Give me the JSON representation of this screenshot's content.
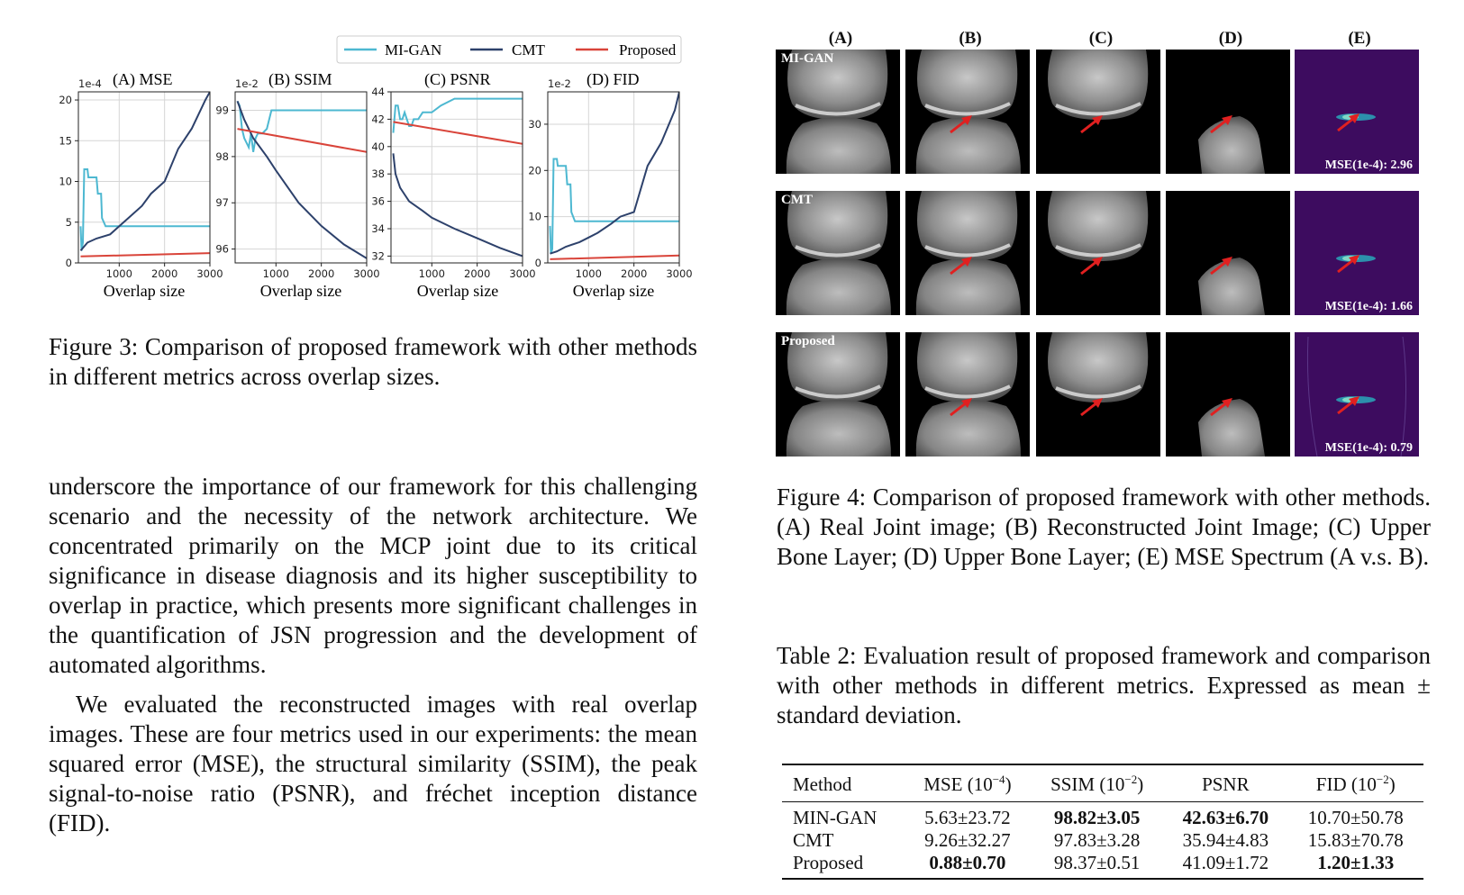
{
  "figure3": {
    "legend": [
      {
        "label": "MI-GAN",
        "color": "#4db8d1"
      },
      {
        "label": "CMT",
        "color": "#2d416b"
      },
      {
        "label": "Proposed",
        "color": "#d9443a"
      }
    ],
    "caption": "Figure 3: Comparison of proposed framework with other methods in different metrics across overlap sizes."
  },
  "chart_data": [
    {
      "type": "line",
      "title": "(A) MSE",
      "xlabel": "Overlap size",
      "ylabel": "",
      "scale_label": "1e-4",
      "xlim": [
        100,
        3000
      ],
      "ylim": [
        0,
        21
      ],
      "xticks": [
        1000,
        2000,
        3000
      ],
      "yticks": [
        0,
        5,
        10,
        15,
        20
      ],
      "series": [
        {
          "name": "MI-GAN",
          "x": [
            150,
            170,
            200,
            230,
            250,
            300,
            320,
            350,
            500,
            530,
            600,
            620,
            700,
            800,
            1000,
            1500,
            2000,
            2500,
            3000
          ],
          "y": [
            4.5,
            1.5,
            2.5,
            11.5,
            11.5,
            11.5,
            10.5,
            10.5,
            10.5,
            8.5,
            8.5,
            5.5,
            4.5,
            4.5,
            4.5,
            4.5,
            4.5,
            4.5,
            4.5
          ]
        },
        {
          "name": "CMT",
          "x": [
            150,
            300,
            500,
            800,
            1000,
            1200,
            1500,
            1700,
            2000,
            2300,
            2600,
            2900,
            3000
          ],
          "y": [
            1.5,
            2.5,
            3.0,
            3.5,
            4.5,
            5.5,
            7.0,
            8.5,
            10.0,
            14.0,
            16.5,
            20.0,
            21.0
          ]
        },
        {
          "name": "Proposed",
          "x": [
            150,
            3000
          ],
          "y": [
            0.8,
            1.2
          ]
        }
      ]
    },
    {
      "type": "line",
      "title": "(B) SSIM",
      "xlabel": "Overlap size",
      "ylabel": "",
      "scale_label": "1e-2",
      "xlim": [
        100,
        3000
      ],
      "ylim": [
        95.7,
        99.4
      ],
      "xticks": [
        1000,
        2000,
        3000
      ],
      "yticks": [
        96,
        97,
        98,
        99
      ],
      "series": [
        {
          "name": "MI-GAN",
          "x": [
            150,
            200,
            250,
            300,
            400,
            450,
            500,
            550,
            600,
            700,
            800,
            900,
            1000,
            1500,
            2000,
            2500,
            3000
          ],
          "y": [
            99.2,
            99.1,
            98.6,
            98.4,
            98.2,
            98.5,
            98.1,
            98.4,
            98.5,
            98.5,
            98.6,
            99.0,
            99.0,
            99.0,
            99.0,
            99.0,
            99.0
          ]
        },
        {
          "name": "CMT",
          "x": [
            150,
            300,
            500,
            800,
            1000,
            1500,
            2000,
            2500,
            3000
          ],
          "y": [
            99.2,
            98.8,
            98.4,
            98.0,
            97.7,
            97.0,
            96.5,
            96.1,
            95.8
          ]
        },
        {
          "name": "Proposed",
          "x": [
            150,
            3000
          ],
          "y": [
            98.6,
            98.1
          ]
        }
      ]
    },
    {
      "type": "line",
      "title": "(C) PSNR",
      "xlabel": "Overlap size",
      "ylabel": "",
      "scale_label": "",
      "xlim": [
        100,
        3000
      ],
      "ylim": [
        31.5,
        44
      ],
      "xticks": [
        1000,
        2000,
        3000
      ],
      "yticks": [
        32,
        34,
        36,
        38,
        40,
        42,
        44
      ],
      "series": [
        {
          "name": "MI-GAN",
          "x": [
            150,
            200,
            250,
            300,
            350,
            400,
            450,
            500,
            550,
            600,
            700,
            800,
            1000,
            1200,
            1500,
            2000,
            2500,
            3000
          ],
          "y": [
            41.0,
            43.0,
            43.0,
            42.0,
            42.0,
            42.5,
            42.0,
            41.5,
            41.5,
            42.0,
            42.0,
            42.5,
            42.5,
            43.0,
            43.5,
            43.5,
            43.5,
            43.5
          ]
        },
        {
          "name": "CMT",
          "x": [
            150,
            200,
            300,
            400,
            500,
            800,
            1000,
            1500,
            2000,
            2500,
            3000
          ],
          "y": [
            39.5,
            38.0,
            37.0,
            36.5,
            36.0,
            35.3,
            34.8,
            34.0,
            33.3,
            32.6,
            32.0
          ]
        },
        {
          "name": "Proposed",
          "x": [
            150,
            3000
          ],
          "y": [
            41.8,
            40.2
          ]
        }
      ]
    },
    {
      "type": "line",
      "title": "(D) FID",
      "xlabel": "Overlap size",
      "ylabel": "",
      "scale_label": "1e-2",
      "xlim": [
        100,
        3000
      ],
      "ylim": [
        0,
        37
      ],
      "xticks": [
        1000,
        2000,
        3000
      ],
      "yticks": [
        0,
        10,
        20,
        30
      ],
      "series": [
        {
          "name": "MI-GAN",
          "x": [
            150,
            170,
            200,
            230,
            250,
            300,
            320,
            350,
            500,
            530,
            600,
            620,
            700,
            800,
            1000,
            1500,
            2000,
            2500,
            3000
          ],
          "y": [
            8.0,
            2.0,
            3.0,
            22.5,
            22.5,
            22.5,
            21.0,
            21.0,
            21.0,
            17.0,
            17.0,
            11.0,
            9.0,
            9.0,
            9.0,
            9.0,
            9.0,
            9.0,
            9.0
          ]
        },
        {
          "name": "CMT",
          "x": [
            150,
            300,
            500,
            800,
            1000,
            1200,
            1500,
            1700,
            2000,
            2300,
            2600,
            2900,
            3000
          ],
          "y": [
            2.0,
            2.5,
            3.5,
            4.5,
            5.5,
            6.5,
            8.5,
            10.0,
            11.0,
            21.0,
            26.0,
            33.0,
            37.0
          ]
        },
        {
          "name": "Proposed",
          "x": [
            150,
            3000
          ],
          "y": [
            0.8,
            1.6
          ]
        }
      ]
    }
  ],
  "left_text": {
    "para1": "underscore the importance of our framework for this challenging scenario and the necessity of the network architecture. We concentrated primarily on the MCP joint due to its critical significance in disease diagnosis and its higher susceptibility to overlap in practice, which presents more significant challenges in the quantification of JSN progression and the development of automated algorithms.",
    "para2": "We evaluated the reconstructed images with real overlap images. These are four metrics used in our experiments: the mean squared error (MSE), the structural similarity (SSIM), the peak signal-to-noise ratio (PSNR), and fréchet inception distance (FID)."
  },
  "figure4": {
    "columns": [
      "(A)",
      "(B)",
      "(C)",
      "(D)",
      "(E)"
    ],
    "rows": [
      {
        "label": "MI-GAN",
        "mse": "MSE(1e-4): 2.96"
      },
      {
        "label": "CMT",
        "mse": "MSE(1e-4): 1.66"
      },
      {
        "label": "Proposed",
        "mse": "MSE(1e-4): 0.79"
      }
    ],
    "caption": "Figure 4: Comparison of proposed framework with other methods. (A) Real Joint image; (B) Reconstructed Joint Image; (C) Upper Bone Layer; (D) Upper Bone Layer; (E) MSE Spectrum (A v.s. B)."
  },
  "table2": {
    "caption": "Table 2: Evaluation result of proposed framework and comparison with other methods in different metrics. Expressed as mean ± standard deviation.",
    "headers": {
      "method": "Method",
      "mse": "MSE (10",
      "mse_exp": "−4",
      "ssim": "SSIM (10",
      "ssim_exp": "−2",
      "psnr": "PSNR",
      "fid": "FID (10",
      "fid_exp": "−2",
      "close": ")"
    },
    "rows": [
      {
        "method": "MIN-GAN",
        "mse": "5.63±23.72",
        "ssim": "98.82±3.05",
        "psnr": "42.63±6.70",
        "fid": "10.70±50.78"
      },
      {
        "method": "CMT",
        "mse": "9.26±32.27",
        "ssim": "97.83±3.28",
        "psnr": "35.94±4.83",
        "fid": "15.83±70.78"
      },
      {
        "method": "Proposed",
        "mse": "0.88±0.70",
        "ssim": "98.37±0.51",
        "psnr": "41.09±1.72",
        "fid": "1.20±1.33"
      }
    ]
  }
}
